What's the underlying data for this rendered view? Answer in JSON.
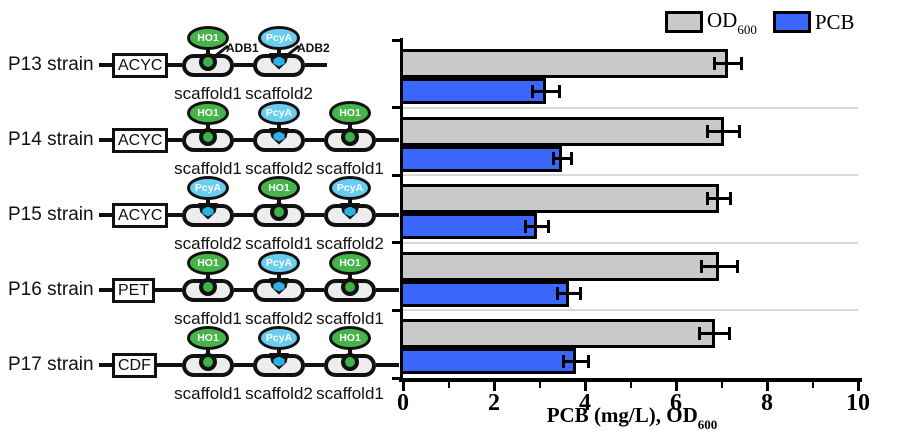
{
  "legend": {
    "od_main": "OD",
    "od_sub": "600",
    "pcb": "PCB"
  },
  "colors": {
    "od_bar": "#c9c9c9",
    "pcb_bar": "#3a66fb",
    "outline": "#111111",
    "ho1_green": "#45b549",
    "pcya_blue": "#68cdf1",
    "anchor_green": "#3fb04a",
    "anchor_blue": "#2bb3e8",
    "scaffold_fill": "#ededed",
    "separator": "#d8d8d8"
  },
  "strains": [
    {
      "name": "P13 strain",
      "plasmid": "ACYC",
      "scaffolds": [
        {
          "label": "scaffold1",
          "enzyme": "HO1",
          "anchor": "circle",
          "callout": "ADB1"
        },
        {
          "label": "scaffold2",
          "enzyme": "PcyA",
          "anchor": "hexagon",
          "callout": "ADB2"
        }
      ]
    },
    {
      "name": "P14 strain",
      "plasmid": "ACYC",
      "scaffolds": [
        {
          "label": "scaffold1",
          "enzyme": "HO1",
          "anchor": "circle"
        },
        {
          "label": "scaffold2",
          "enzyme": "PcyA",
          "anchor": "hexagon"
        },
        {
          "label": "scaffold1",
          "enzyme": "HO1",
          "anchor": "circle"
        }
      ]
    },
    {
      "name": "P15 strain",
      "plasmid": "ACYC",
      "scaffolds": [
        {
          "label": "scaffold2",
          "enzyme": "PcyA",
          "anchor": "hexagon"
        },
        {
          "label": "scaffold1",
          "enzyme": "HO1",
          "anchor": "circle"
        },
        {
          "label": "scaffold2",
          "enzyme": "PcyA",
          "anchor": "hexagon"
        }
      ]
    },
    {
      "name": "P16 strain",
      "plasmid": "PET",
      "scaffolds": [
        {
          "label": "scaffold1",
          "enzyme": "HO1",
          "anchor": "circle"
        },
        {
          "label": "scaffold2",
          "enzyme": "PcyA",
          "anchor": "hexagon"
        },
        {
          "label": "scaffold1",
          "enzyme": "HO1",
          "anchor": "circle"
        }
      ]
    },
    {
      "name": "P17 strain",
      "plasmid": "CDF",
      "scaffolds": [
        {
          "label": "scaffold1",
          "enzyme": "HO1",
          "anchor": "circle"
        },
        {
          "label": "scaffold2",
          "enzyme": "PcyA",
          "anchor": "hexagon"
        },
        {
          "label": "scaffold1",
          "enzyme": "HO1",
          "anchor": "circle"
        }
      ]
    }
  ],
  "chart_data": {
    "type": "bar",
    "orientation": "horizontal",
    "categories": [
      "P13 strain",
      "P14 strain",
      "P15 strain",
      "P16 strain",
      "P17 strain"
    ],
    "series": [
      {
        "name": "OD600",
        "color": "#c9c9c9",
        "values": [
          7.15,
          7.05,
          6.95,
          6.95,
          6.85
        ],
        "errors": [
          0.3,
          0.35,
          0.25,
          0.4,
          0.33
        ]
      },
      {
        "name": "PCB",
        "color": "#3a66fb",
        "values": [
          3.15,
          3.5,
          2.95,
          3.65,
          3.8
        ],
        "errors": [
          0.3,
          0.2,
          0.25,
          0.25,
          0.28
        ]
      }
    ],
    "xlabel": "PCB (mg/L), OD600",
    "xlabel_main": "PCB (mg/L), OD",
    "xlabel_sub": "600",
    "xlim": [
      0,
      10
    ],
    "xticks_major": [
      0,
      2,
      4,
      6,
      8,
      10
    ],
    "xticks_minor": [
      1,
      3,
      5,
      7,
      9
    ],
    "grid": false,
    "legend_position": "top-right"
  }
}
